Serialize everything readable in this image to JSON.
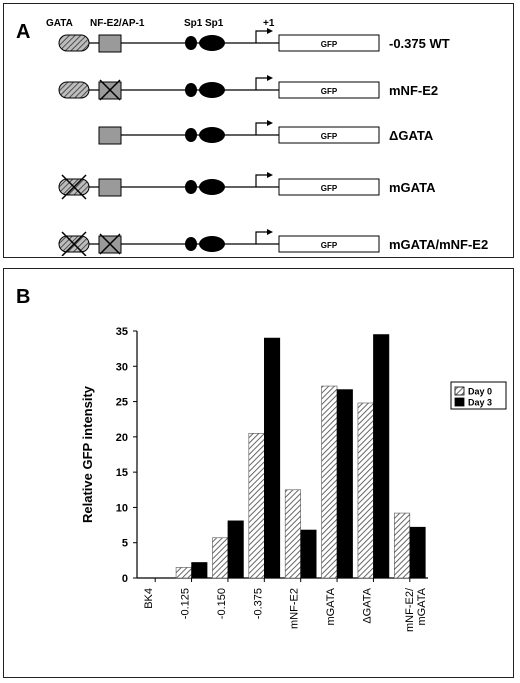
{
  "panel_a": {
    "label": "A",
    "element_labels": {
      "gata": "GATA",
      "nfe2_ap1": "NF-E2/AP-1",
      "sp1_a": "Sp1",
      "sp1_b": "Sp1",
      "tss": "+1"
    },
    "constructs": [
      {
        "name": "-0.375 WT",
        "gata": "intact",
        "nfe2": "intact",
        "gfp": "GFP"
      },
      {
        "name": "mNF-E2",
        "gata": "intact",
        "nfe2": "mutated",
        "gfp": "GFP"
      },
      {
        "name": "ΔGATA",
        "gata": "deleted",
        "nfe2": "intact",
        "gfp": "GFP"
      },
      {
        "name": "mGATA",
        "gata": "mutated",
        "nfe2": "intact",
        "gfp": "GFP"
      },
      {
        "name": "mGATA/mNF-E2",
        "gata": "mutated",
        "nfe2": "mutated",
        "gfp": "GFP"
      }
    ]
  },
  "panel_b": {
    "label": "B"
  },
  "chart_data": {
    "type": "bar",
    "title": "",
    "xlabel": "",
    "ylabel": "Relative GFP intensity",
    "ylim": [
      0,
      35
    ],
    "yticks": [
      0,
      5,
      10,
      15,
      20,
      25,
      30,
      35
    ],
    "categories": [
      "BK4",
      "-0.125",
      "-0.150",
      "-0.375",
      "mNF-E2",
      "mGATA",
      "ΔGATA",
      "mNF-E2/\nmGATA"
    ],
    "series": [
      {
        "name": "Day 0",
        "pattern": "hatched",
        "values": [
          0,
          1.5,
          5.7,
          20.5,
          12.5,
          27.2,
          24.8,
          9.2
        ]
      },
      {
        "name": "Day 3",
        "pattern": "solid",
        "values": [
          0,
          2.2,
          8.1,
          34.0,
          6.8,
          26.7,
          34.5,
          7.2
        ]
      }
    ],
    "legend_position": "right",
    "colors": {
      "solid": "#000000",
      "hatch": "#555555"
    }
  }
}
